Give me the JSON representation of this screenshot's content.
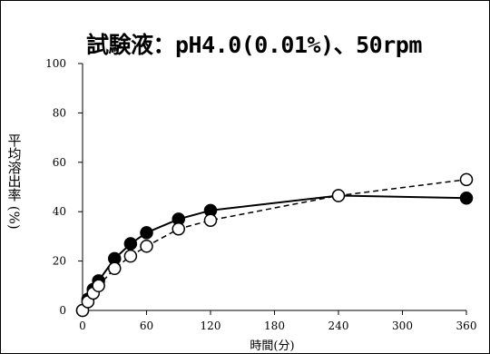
{
  "chart_data": {
    "type": "line",
    "title": "試験液：pH4.0(0.01%)、50rpm",
    "xlabel": "時間(分)",
    "ylabel": "平均溶出率 (%)",
    "x_ticks": [
      0,
      60,
      120,
      180,
      240,
      300,
      360
    ],
    "y_ticks": [
      0,
      20,
      40,
      60,
      80,
      100
    ],
    "xlim": [
      0,
      360
    ],
    "ylim": [
      0,
      100
    ],
    "grid": false,
    "legend": "none",
    "series": [
      {
        "marker": "filled-circle",
        "line_style": "solid",
        "color": "#000000",
        "x": [
          0,
          5,
          10,
          15,
          30,
          45,
          60,
          90,
          120,
          240,
          360
        ],
        "y": [
          0,
          4.5,
          8.5,
          12,
          21,
          27,
          31.5,
          37,
          40.5,
          46.5,
          45.5
        ]
      },
      {
        "marker": "open-circle",
        "line_style": "dashed",
        "color": "#000000",
        "x": [
          0,
          5,
          10,
          15,
          30,
          45,
          60,
          90,
          120,
          240,
          360
        ],
        "y": [
          0,
          3.5,
          7,
          10,
          17,
          22,
          26,
          33,
          36.5,
          46.5,
          53
        ]
      }
    ]
  }
}
